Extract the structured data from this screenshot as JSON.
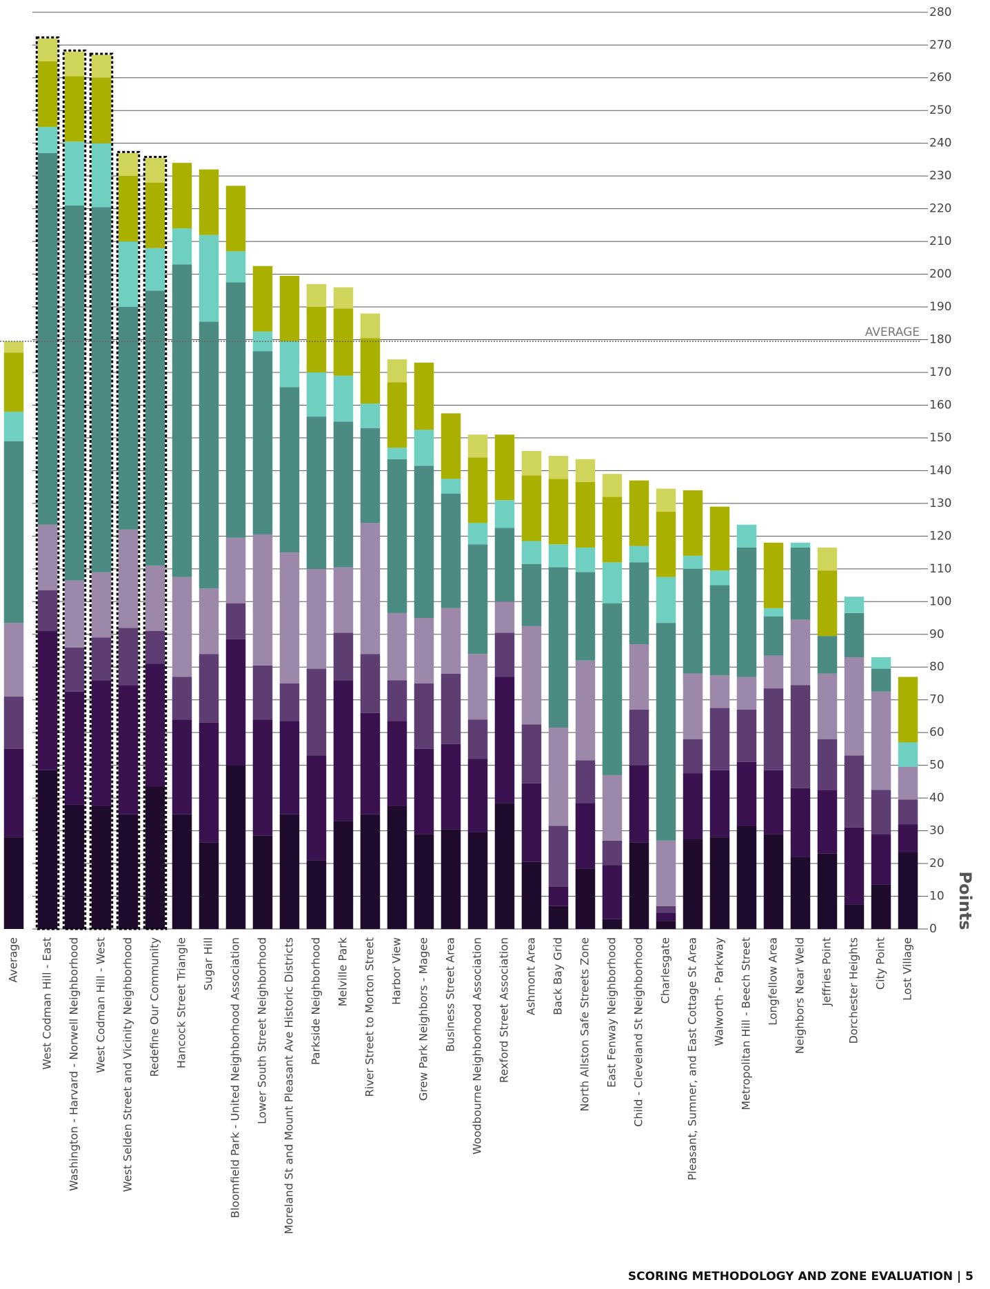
{
  "chart_data": {
    "type": "stacked_bar",
    "categories": [
      "Average",
      "West Codman Hill - East",
      "Washington - Harvard - Norwell Neighborhood",
      "West Codman Hill - West",
      "West Selden Street and Vicinity Neighborhood",
      "Redefine Our Community",
      "Hancock Street Triangle",
      "Sugar Hill",
      "Bloomfield Park - United Neighborhood Association",
      "Lower South Street Neighborhood",
      "Moreland St and Mount Pleasant Ave Historic Districts",
      "Parkside Neighborhood",
      "Melville Park",
      "River Street to Morton Street",
      "Harbor View",
      "Grew Park Neighbors - Magee",
      "Business Street Area",
      "Woodbourne Neighborhood Association",
      "Rexford Street Association",
      "Ashmont Area",
      "Back Bay Grid",
      "North Allston Safe Streets Zone",
      "East Fenway Neighborhood",
      "Child - Cleveland St Neighborhood",
      "Charlesgate",
      "Pleasant, Sumner, and East Cottage St Area",
      "Walworth - Parkway",
      "Metropolitan Hill - Beech Street",
      "Longfellow Area",
      "Neighbors Near Weld",
      "Jeffries Point",
      "Dorchester Heights",
      "City Point",
      "Lost Village"
    ],
    "series": [
      {
        "color": "#1f0c2d",
        "values": [
          28,
          48.5,
          38,
          37.5,
          35,
          43.5,
          35,
          26.5,
          50,
          28.5,
          35,
          21,
          33,
          35,
          37.5,
          29,
          30.5,
          29.5,
          38.5,
          20.5,
          7,
          18.5,
          3,
          26.5,
          2.5,
          27.5,
          28,
          31.5,
          29,
          22,
          23,
          7.5,
          13.5,
          23.5
        ]
      },
      {
        "color": "#3b1250",
        "values": [
          27,
          42.5,
          34.5,
          38.5,
          39.5,
          37.5,
          29,
          36.5,
          38.5,
          35.5,
          28.5,
          32,
          43,
          31,
          26,
          26,
          26,
          22.5,
          38.5,
          24,
          6,
          20,
          16.5,
          23.5,
          2.5,
          20,
          20.5,
          19.5,
          19.5,
          21,
          19.5,
          23.5,
          15.5,
          8.5
        ]
      },
      {
        "color": "#5e3d72",
        "values": [
          16,
          12.5,
          13.5,
          13,
          17.5,
          10,
          13,
          21,
          11,
          16.5,
          11.5,
          26.5,
          14.5,
          18,
          12.5,
          20,
          21.5,
          12,
          13.5,
          18,
          18.5,
          13,
          7.5,
          17,
          2,
          10.5,
          19,
          16,
          25,
          31.5,
          15.5,
          22,
          13.5,
          7.5
        ]
      },
      {
        "color": "#9c89aa",
        "values": [
          22.5,
          20,
          20.5,
          20,
          30,
          20,
          30.5,
          20,
          20,
          40,
          40,
          30.5,
          20,
          40,
          20.5,
          20,
          20,
          20,
          9.5,
          30,
          30,
          30.5,
          20,
          20,
          20,
          20,
          10,
          10,
          10,
          20,
          20,
          30,
          30,
          10
        ]
      },
      {
        "color": "#4c8b82",
        "values": [
          55.5,
          113.5,
          114.5,
          111.5,
          68,
          84,
          95.5,
          81.5,
          78,
          56,
          50.5,
          46.5,
          44.5,
          29,
          47,
          46.5,
          35,
          33.5,
          22.5,
          19,
          49,
          27,
          52.5,
          25,
          66.5,
          32,
          27.5,
          39.5,
          12,
          22,
          11.5,
          13.5,
          7,
          0
        ]
      },
      {
        "color": "#6fd0c1",
        "values": [
          9,
          8,
          19.5,
          19.5,
          20,
          13,
          11,
          26.5,
          9.5,
          6,
          14,
          13.5,
          14,
          7.5,
          3.5,
          11,
          4.5,
          6.5,
          8.5,
          7,
          7,
          7.5,
          12.5,
          5,
          14,
          4,
          4.5,
          7,
          2.5,
          1.5,
          0,
          5,
          3.5,
          7.5
        ]
      },
      {
        "color": "#a9b000",
        "values": [
          18,
          20,
          20,
          20,
          20,
          20,
          20,
          20,
          20,
          20,
          20,
          20,
          20.5,
          20,
          20,
          20.5,
          20,
          20,
          20,
          20,
          20,
          20,
          20,
          20,
          20,
          20,
          19.5,
          0,
          20,
          0,
          20,
          0,
          0,
          20
        ]
      },
      {
        "color": "#cfd45a",
        "values": [
          3.5,
          7,
          7.5,
          7,
          7,
          7.5,
          0,
          0,
          0,
          0,
          0,
          7,
          6.5,
          7.5,
          7,
          0,
          0,
          7,
          0,
          7.5,
          7,
          7,
          7,
          0,
          7,
          0,
          0,
          0,
          0,
          0,
          7,
          0,
          0,
          0
        ]
      }
    ],
    "highlighted": [
      1,
      2,
      3,
      4,
      5
    ],
    "average_line": {
      "label": "AVERAGE",
      "value": 179.5
    },
    "y_label": "Points",
    "ylim": [
      0,
      280
    ],
    "yticks": [
      0,
      10,
      20,
      30,
      40,
      50,
      60,
      70,
      80,
      90,
      100,
      110,
      120,
      130,
      140,
      150,
      160,
      170,
      180,
      190,
      200,
      210,
      220,
      230,
      240,
      250,
      260,
      270,
      280
    ],
    "grid": true
  },
  "footer": "SCORING METHODOLOGY AND ZONE EVALUATION | 5"
}
